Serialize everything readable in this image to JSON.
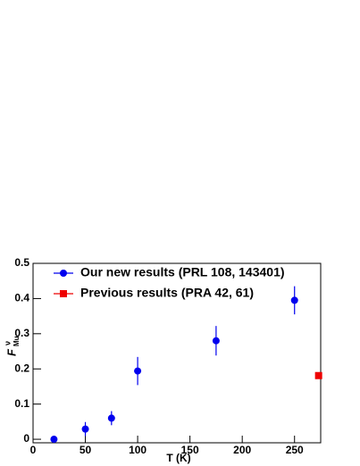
{
  "chart_data": {
    "type": "scatter",
    "x_label": "T (K)",
    "y_label": {
      "base": "F",
      "sup": "ν",
      "sub": "Mu"
    },
    "xlim": [
      0,
      275
    ],
    "ylim": [
      -0.01,
      0.5
    ],
    "xticks": [
      0,
      50,
      100,
      150,
      200,
      250
    ],
    "yticks": [
      0,
      0.1,
      0.2,
      0.3,
      0.4,
      0.5
    ],
    "grid": false,
    "legend": "top-left",
    "series": [
      {
        "name": "Our new results (PRL 108, 143401)",
        "color": "#0000ee",
        "marker": "circle",
        "x": [
          20,
          50,
          75,
          100,
          175,
          250
        ],
        "values": [
          0.0,
          0.029,
          0.06,
          0.194,
          0.28,
          0.395
        ],
        "errors": [
          0.004,
          0.02,
          0.02,
          0.04,
          0.042,
          0.04
        ]
      },
      {
        "name": "Previous results (PRA 42, 61)",
        "color": "#ee0000",
        "marker": "square",
        "x": [
          273
        ],
        "values": [
          0.181
        ]
      }
    ]
  }
}
